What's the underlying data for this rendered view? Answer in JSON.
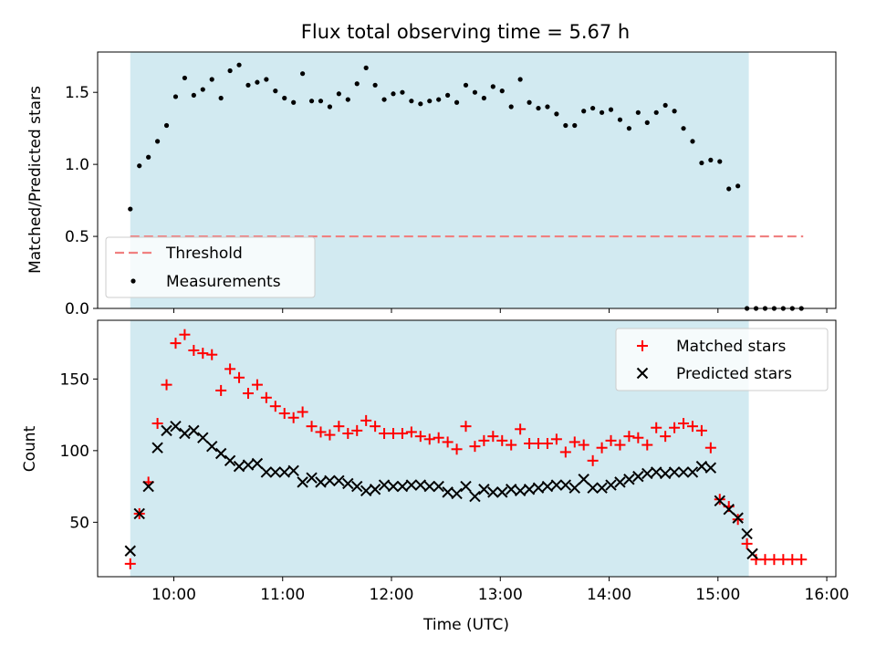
{
  "figure": {
    "title": "Flux total observing time = 5.67 h",
    "xlabel": "Time (UTC)",
    "x_tick_labels": [
      "10:00",
      "11:00",
      "12:00",
      "13:00",
      "14:00",
      "15:00",
      "16:00"
    ]
  },
  "colors": {
    "shade": "#add8e6",
    "threshold": "#f08080",
    "measurements": "#000000",
    "matched": "#ff0000",
    "predicted": "#000000"
  },
  "chart_data": [
    {
      "type": "scatter",
      "title": "Flux total observing time = 5.67 h",
      "xlabel": "",
      "ylabel": "Matched/Predicted stars",
      "xlim": [
        "09:18",
        "16:05"
      ],
      "ylim": [
        0,
        1.78
      ],
      "y_ticks": [
        0,
        0.5,
        1.0,
        1.5
      ],
      "y_tick_labels": [
        "0.0",
        "0.5",
        "1.0",
        "1.5"
      ],
      "x_tick_labels": [],
      "shaded_span": [
        "09:36",
        "15:17"
      ],
      "grid": false,
      "legend_position": "lower-left",
      "threshold": {
        "name": "Threshold",
        "y": 0.5,
        "x_range": [
          "09:36",
          "15:47"
        ],
        "style": "dashed"
      },
      "series": [
        {
          "name": "Measurements",
          "marker": "dot",
          "x": [
            "09:36",
            "09:41",
            "09:46",
            "09:51",
            "09:56",
            "10:01",
            "10:06",
            "10:11",
            "10:16",
            "10:21",
            "10:26",
            "10:31",
            "10:36",
            "10:41",
            "10:46",
            "10:51",
            "10:56",
            "11:01",
            "11:06",
            "11:11",
            "11:16",
            "11:21",
            "11:26",
            "11:31",
            "11:36",
            "11:41",
            "11:46",
            "11:51",
            "11:56",
            "12:01",
            "12:06",
            "12:11",
            "12:16",
            "12:21",
            "12:26",
            "12:31",
            "12:36",
            "12:41",
            "12:46",
            "12:51",
            "12:56",
            "13:01",
            "13:06",
            "13:11",
            "13:16",
            "13:21",
            "13:26",
            "13:31",
            "13:36",
            "13:41",
            "13:46",
            "13:51",
            "13:56",
            "14:01",
            "14:06",
            "14:11",
            "14:16",
            "14:21",
            "14:26",
            "14:31",
            "14:36",
            "14:41",
            "14:46",
            "14:51",
            "14:56",
            "15:01",
            "15:06",
            "15:11",
            "15:16",
            "15:21",
            "15:26",
            "15:31",
            "15:36",
            "15:41",
            "15:46"
          ],
          "y": [
            0.69,
            0.99,
            1.05,
            1.16,
            1.27,
            1.47,
            1.6,
            1.48,
            1.52,
            1.59,
            1.46,
            1.65,
            1.69,
            1.55,
            1.57,
            1.59,
            1.51,
            1.46,
            1.43,
            1.63,
            1.44,
            1.44,
            1.4,
            1.49,
            1.45,
            1.56,
            1.67,
            1.55,
            1.45,
            1.49,
            1.5,
            1.44,
            1.42,
            1.44,
            1.45,
            1.48,
            1.43,
            1.55,
            1.5,
            1.46,
            1.54,
            1.51,
            1.4,
            1.59,
            1.43,
            1.39,
            1.4,
            1.35,
            1.27,
            1.27,
            1.37,
            1.39,
            1.36,
            1.38,
            1.31,
            1.25,
            1.36,
            1.29,
            1.36,
            1.41,
            1.37,
            1.25,
            1.16,
            1.01,
            1.03,
            1.02,
            0.83,
            0.85,
            0,
            0,
            0,
            0,
            0,
            0,
            0
          ]
        }
      ]
    },
    {
      "type": "scatter",
      "xlabel": "Time (UTC)",
      "ylabel": "Count",
      "xlim": [
        "09:18",
        "16:05"
      ],
      "ylim": [
        12,
        191
      ],
      "y_ticks": [
        50,
        100,
        150
      ],
      "y_tick_labels": [
        "50",
        "100",
        "150"
      ],
      "x_tick_labels": [
        "10:00",
        "11:00",
        "12:00",
        "13:00",
        "14:00",
        "15:00",
        "16:00"
      ],
      "shaded_span": [
        "09:36",
        "15:17"
      ],
      "grid": false,
      "legend_position": "upper-right",
      "series": [
        {
          "name": "Matched stars",
          "marker": "plus",
          "x": [
            "09:36",
            "09:41",
            "09:46",
            "09:51",
            "09:56",
            "10:01",
            "10:06",
            "10:11",
            "10:16",
            "10:21",
            "10:26",
            "10:31",
            "10:36",
            "10:41",
            "10:46",
            "10:51",
            "10:56",
            "11:01",
            "11:06",
            "11:11",
            "11:16",
            "11:21",
            "11:26",
            "11:31",
            "11:36",
            "11:41",
            "11:46",
            "11:51",
            "11:56",
            "12:01",
            "12:06",
            "12:11",
            "12:16",
            "12:21",
            "12:26",
            "12:31",
            "12:36",
            "12:41",
            "12:46",
            "12:51",
            "12:56",
            "13:01",
            "13:06",
            "13:11",
            "13:16",
            "13:21",
            "13:26",
            "13:31",
            "13:36",
            "13:41",
            "13:46",
            "13:51",
            "13:56",
            "14:01",
            "14:06",
            "14:11",
            "14:16",
            "14:21",
            "14:26",
            "14:31",
            "14:36",
            "14:41",
            "14:46",
            "14:51",
            "14:56",
            "15:01",
            "15:06",
            "15:11",
            "15:16",
            "15:21",
            "15:26",
            "15:31",
            "15:36",
            "15:41",
            "15:46"
          ],
          "y": [
            21,
            56,
            78,
            119,
            146,
            175,
            181,
            170,
            168,
            167,
            142,
            157,
            151,
            140,
            146,
            137,
            131,
            126,
            123,
            127,
            117,
            113,
            111,
            117,
            112,
            114,
            121,
            117,
            112,
            112,
            112,
            113,
            110,
            108,
            109,
            106,
            101,
            117,
            103,
            107,
            110,
            107,
            104,
            115,
            105,
            105,
            105,
            108,
            99,
            106,
            104,
            93,
            102,
            107,
            104,
            110,
            109,
            104,
            116,
            110,
            116,
            119,
            117,
            114,
            102,
            66,
            61,
            52,
            35,
            24,
            24,
            24,
            24,
            24,
            24
          ]
        },
        {
          "name": "Predicted stars",
          "marker": "x",
          "x": [
            "09:36",
            "09:41",
            "09:46",
            "09:51",
            "09:56",
            "10:01",
            "10:06",
            "10:11",
            "10:16",
            "10:21",
            "10:26",
            "10:31",
            "10:36",
            "10:41",
            "10:46",
            "10:51",
            "10:56",
            "11:01",
            "11:06",
            "11:11",
            "11:16",
            "11:21",
            "11:26",
            "11:31",
            "11:36",
            "11:41",
            "11:46",
            "11:51",
            "11:56",
            "12:01",
            "12:06",
            "12:11",
            "12:16",
            "12:21",
            "12:26",
            "12:31",
            "12:36",
            "12:41",
            "12:46",
            "12:51",
            "12:56",
            "13:01",
            "13:06",
            "13:11",
            "13:16",
            "13:21",
            "13:26",
            "13:31",
            "13:36",
            "13:41",
            "13:46",
            "13:51",
            "13:56",
            "14:01",
            "14:06",
            "14:11",
            "14:16",
            "14:21",
            "14:26",
            "14:31",
            "14:36",
            "14:41",
            "14:46",
            "14:51",
            "14:56",
            "15:01",
            "15:06",
            "15:11",
            "15:16"
          ],
          "y": [
            30,
            56,
            75,
            102,
            114,
            117,
            112,
            114,
            109,
            103,
            98,
            93,
            89,
            90,
            91,
            85,
            85,
            85,
            86,
            78,
            81,
            78,
            79,
            79,
            77,
            75,
            72,
            73,
            76,
            75,
            75,
            76,
            76,
            75,
            75,
            71,
            70,
            75,
            68,
            73,
            71,
            71,
            73,
            72,
            73,
            74,
            75,
            76,
            76,
            74,
            80,
            74,
            74,
            76,
            78,
            80,
            82,
            84,
            85,
            84,
            85,
            85,
            85,
            89,
            88,
            65,
            59,
            53,
            42
          ]
        },
        {
          "name": "",
          "marker": "x",
          "x": [
            "15:19"
          ],
          "y": [
            28
          ]
        }
      ]
    }
  ]
}
